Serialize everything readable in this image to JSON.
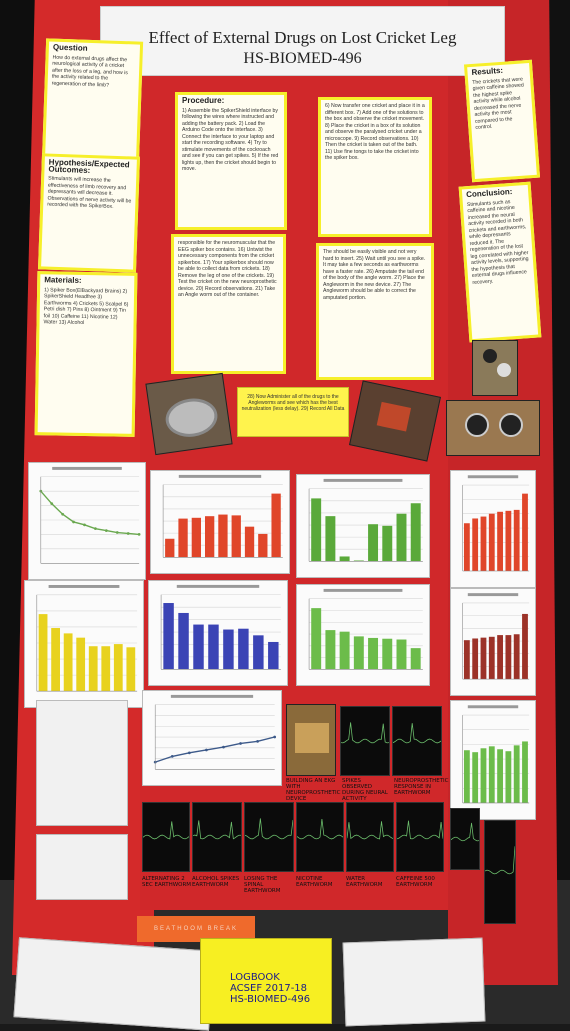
{
  "board": {
    "title": "Effect of External Drugs on Lost Cricket Leg",
    "subtitle": "HS-BIOMED-496"
  },
  "notes": {
    "question": {
      "heading": "Question",
      "body": "How do external drugs affect the neurological activity of a cricket after the loss of a leg, and how is the activity related to the regeneration of the limb?"
    },
    "hypothesis": {
      "heading": "Hypothesis/Expected Outcomes:",
      "body": "Stimulants will increase the effectiveness of limb recovery and depressants will decrease it. Observations of nerve activity will be recorded with the SpikerBox."
    },
    "materials": {
      "heading": "Materials:",
      "body": "1) Spiker Box(ElBackyard Brains) 2) SpikerShield Headfree 3) Earthworms 4) Crickets 5) Scalpel 6) Petri dish 7) Pins 8) Ointment 9) Tin foil 10) Caffeine 11) Nicotine 12) Water 13) Alcohol"
    },
    "procedure_title": "Procedure:",
    "procedure_1": "1) Assemble the SpikerShield interface by following the wires where instructed and adding the battery pack. 2) Load the Arduino Code onto the interface. 3) Connect the interface to your laptop and start the recording software. 4) Try to stimulate movements of the cockroach and see if you can get spikes. 5) If the red lights up, then the cricket should begin to move.",
    "procedure_2": "6) Now transfer one cricket and place it in a different box. 7) Add one of the solutions to the box and observe the cricket movement. 8) Place the cricket in a box of its solution and observe the paralysed cricket under a microscope. 9) Record observations. 10) Then the cricket is taken out of the bath. 11) Use fine tongs to take the cricket into the spiker box.",
    "procedure_3": "responsible for the neuromuscular that the EEG spiker box contains. 16) Untwist the unnecessary components from the cricket spikerbox. 17) Your spikerbox should now be able to collect data from crickets. 18) Remove the leg of one of the crickets. 19) Test the cricket on the new neuroprosthetic device. 20) Record observations. 21) Take an Angle worm out of the container.",
    "procedure_4": "The should be easily visible and not very hard to insert. 25) Wait until you see a spike. It may take a few seconds as earthworms have a faster rate. 26) Amputate the tail end of the body of the angle worm. 27) Place the Angleworm in the new device. 27) The Angleworm should be able to correct the amputated portion.",
    "center_tab": "28) Now Administer all of the drugs to the Angleworms and see which has the best neutralization (less delay). 29) Record All Data",
    "results": {
      "heading": "Results:",
      "body": "The crickets that were given caffeine showed the highest spike activity while alcohol decreased the nerve activity the most compared to the control."
    },
    "conclusion": {
      "heading": "Conclusion:",
      "body": "Stimulants such as caffeine and nicotine increased the neural activity recorded in both crickets and earthworms, while depressants reduced it. The regeneration of the lost leg correlated with higher activity levels, supporting the hypothesis that external drugs influence recovery."
    }
  },
  "captions": {
    "c1": "BUILDING AN EKG WITH NEUROPROSTHETIC DEVICE",
    "c2": "SPIKES OBSERVED DURING NEURAL ACTIVITY",
    "c3": "NEUROPROSTHETIC RESPONSE IN EARTHWORM",
    "s1": "ALTERNATING 2 SEC EARTHWORM",
    "s2": "ALCOHOL SPIKES EARTHWORM",
    "s3": "LOSING THE SPINAL EARTHWORM",
    "s4": "NICOTINE EARTHWORM",
    "s5": "WATER EARTHWORM",
    "s6": "CAFFEINE 500 EARTHWORM"
  },
  "bottom": {
    "orange_tag": "BEATHOOM BREAK",
    "logbook_line1": "LOGBOOK",
    "logbook_line2": "ACSEF 2017-18",
    "logbook_line3": "HS-BIOMED-496"
  },
  "colors": {
    "board_red": "#d0282a",
    "note_border": "#f6ef2a",
    "bar_red": "#e0462a",
    "bar_green": "#5aa93a",
    "bar_yellow": "#e8d21e",
    "bar_blue": "#3b44b5",
    "bar_darkred": "#9c3228",
    "bar_green2": "#6cbc4a"
  },
  "chart_data": [
    {
      "type": "line",
      "title": "",
      "values": [
        7.5,
        6.2,
        5.1,
        4.3,
        4.0,
        3.6,
        3.4,
        3.2,
        3.1,
        3.0
      ],
      "color": "#6aa84f"
    },
    {
      "type": "bar",
      "title": "",
      "values": [
        2.3,
        4.8,
        4.9,
        5.1,
        5.3,
        5.2,
        3.8,
        2.9,
        7.9
      ],
      "color": "#e0462a"
    },
    {
      "type": "bar",
      "title": "",
      "values": [
        7.8,
        5.6,
        0.6,
        0.1,
        4.6,
        4.4,
        5.9,
        7.2
      ],
      "color": "#5aa93a"
    },
    {
      "type": "bar",
      "title": "",
      "values": [
        5.0,
        5.5,
        5.7,
        6.0,
        6.2,
        6.3,
        6.4,
        8.1
      ],
      "color": "#e0462a"
    },
    {
      "type": "bar",
      "title": "",
      "values": [
        7.2,
        5.9,
        5.4,
        5.0,
        4.2,
        4.2,
        4.4,
        4.1
      ],
      "color": "#e8d21e"
    },
    {
      "type": "bar",
      "title": "",
      "values": [
        8.0,
        6.8,
        5.4,
        5.4,
        4.8,
        4.9,
        4.1,
        3.3
      ],
      "color": "#3b44b5"
    },
    {
      "type": "bar",
      "title": "",
      "values": [
        7.8,
        5.0,
        4.8,
        4.2,
        4.0,
        3.9,
        3.8,
        2.7
      ],
      "color": "#6cbc4a"
    },
    {
      "type": "bar",
      "title": "",
      "values": [
        4.6,
        4.8,
        4.9,
        5.0,
        5.2,
        5.2,
        5.3,
        7.7
      ],
      "color": "#9c3228"
    },
    {
      "type": "line",
      "title": "",
      "values": [
        1.0,
        1.8,
        2.3,
        2.7,
        3.1,
        3.6,
        3.9,
        4.5
      ],
      "color": "#3d5a8a"
    },
    {
      "type": "bar",
      "title": "",
      "values": [
        5.4,
        5.2,
        5.6,
        5.8,
        5.5,
        5.3,
        5.9,
        6.3
      ],
      "color": "#6cbc4a"
    }
  ]
}
